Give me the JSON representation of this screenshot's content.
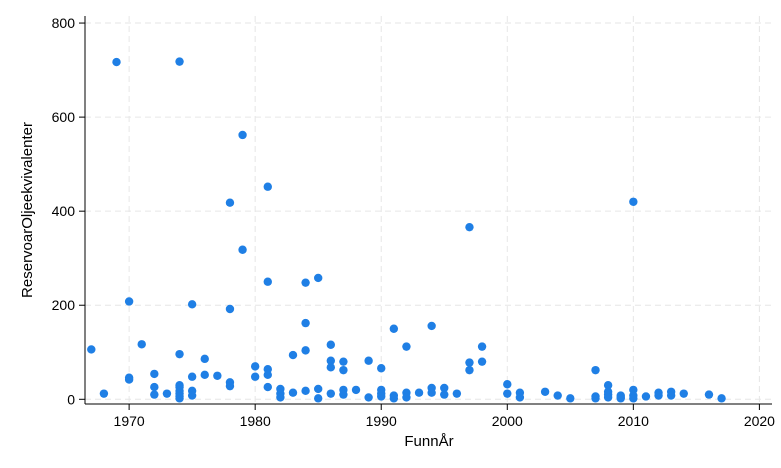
{
  "chart_data": {
    "type": "scatter",
    "title": "",
    "xlabel": "FunnÅr",
    "ylabel": "ReservoarOljeekvivalenter",
    "xlim": [
      1966.5,
      2021
    ],
    "ylim": [
      -10,
      815
    ],
    "x_ticks": [
      1970,
      1980,
      1990,
      2000,
      2010,
      2020
    ],
    "y_ticks": [
      0,
      200,
      400,
      600,
      800
    ],
    "grid": true,
    "legend": "none",
    "marker_color": "#1f7fe5",
    "points": [
      [
        1967,
        106
      ],
      [
        1968,
        12
      ],
      [
        1969,
        717
      ],
      [
        1970,
        208
      ],
      [
        1970,
        46
      ],
      [
        1970,
        42
      ],
      [
        1971,
        117
      ],
      [
        1972,
        54
      ],
      [
        1972,
        26
      ],
      [
        1972,
        10
      ],
      [
        1973,
        12
      ],
      [
        1974,
        718
      ],
      [
        1974,
        96
      ],
      [
        1974,
        30
      ],
      [
        1974,
        26
      ],
      [
        1974,
        18
      ],
      [
        1974,
        12
      ],
      [
        1974,
        6
      ],
      [
        1974,
        2
      ],
      [
        1975,
        202
      ],
      [
        1975,
        48
      ],
      [
        1975,
        18
      ],
      [
        1975,
        8
      ],
      [
        1976,
        86
      ],
      [
        1976,
        52
      ],
      [
        1977,
        50
      ],
      [
        1978,
        418
      ],
      [
        1978,
        192
      ],
      [
        1978,
        36
      ],
      [
        1978,
        28
      ],
      [
        1979,
        562
      ],
      [
        1979,
        318
      ],
      [
        1980,
        70
      ],
      [
        1980,
        48
      ],
      [
        1981,
        452
      ],
      [
        1981,
        250
      ],
      [
        1981,
        64
      ],
      [
        1981,
        52
      ],
      [
        1981,
        26
      ],
      [
        1982,
        22
      ],
      [
        1982,
        12
      ],
      [
        1982,
        4
      ],
      [
        1983,
        94
      ],
      [
        1983,
        14
      ],
      [
        1984,
        248
      ],
      [
        1984,
        162
      ],
      [
        1984,
        104
      ],
      [
        1984,
        18
      ],
      [
        1985,
        258
      ],
      [
        1985,
        22
      ],
      [
        1985,
        2
      ],
      [
        1986,
        116
      ],
      [
        1986,
        82
      ],
      [
        1986,
        68
      ],
      [
        1986,
        12
      ],
      [
        1987,
        80
      ],
      [
        1987,
        62
      ],
      [
        1987,
        20
      ],
      [
        1987,
        10
      ],
      [
        1988,
        20
      ],
      [
        1989,
        82
      ],
      [
        1989,
        4
      ],
      [
        1990,
        66
      ],
      [
        1990,
        20
      ],
      [
        1990,
        12
      ],
      [
        1990,
        6
      ],
      [
        1991,
        150
      ],
      [
        1991,
        8
      ],
      [
        1991,
        2
      ],
      [
        1992,
        112
      ],
      [
        1992,
        14
      ],
      [
        1992,
        4
      ],
      [
        1993,
        14
      ],
      [
        1994,
        156
      ],
      [
        1994,
        24
      ],
      [
        1994,
        14
      ],
      [
        1995,
        24
      ],
      [
        1995,
        10
      ],
      [
        1996,
        12
      ],
      [
        1997,
        366
      ],
      [
        1997,
        78
      ],
      [
        1997,
        62
      ],
      [
        1998,
        112
      ],
      [
        1998,
        80
      ],
      [
        2000,
        32
      ],
      [
        2000,
        12
      ],
      [
        2001,
        14
      ],
      [
        2001,
        4
      ],
      [
        2003,
        16
      ],
      [
        2004,
        8
      ],
      [
        2005,
        2
      ],
      [
        2007,
        62
      ],
      [
        2007,
        6
      ],
      [
        2007,
        2
      ],
      [
        2008,
        30
      ],
      [
        2008,
        16
      ],
      [
        2008,
        10
      ],
      [
        2008,
        4
      ],
      [
        2009,
        8
      ],
      [
        2009,
        4
      ],
      [
        2009,
        2
      ],
      [
        2010,
        420
      ],
      [
        2010,
        20
      ],
      [
        2010,
        8
      ],
      [
        2010,
        2
      ],
      [
        2011,
        6
      ],
      [
        2012,
        14
      ],
      [
        2012,
        8
      ],
      [
        2013,
        16
      ],
      [
        2013,
        8
      ],
      [
        2014,
        12
      ],
      [
        2016,
        10
      ],
      [
        2017,
        2
      ]
    ]
  }
}
